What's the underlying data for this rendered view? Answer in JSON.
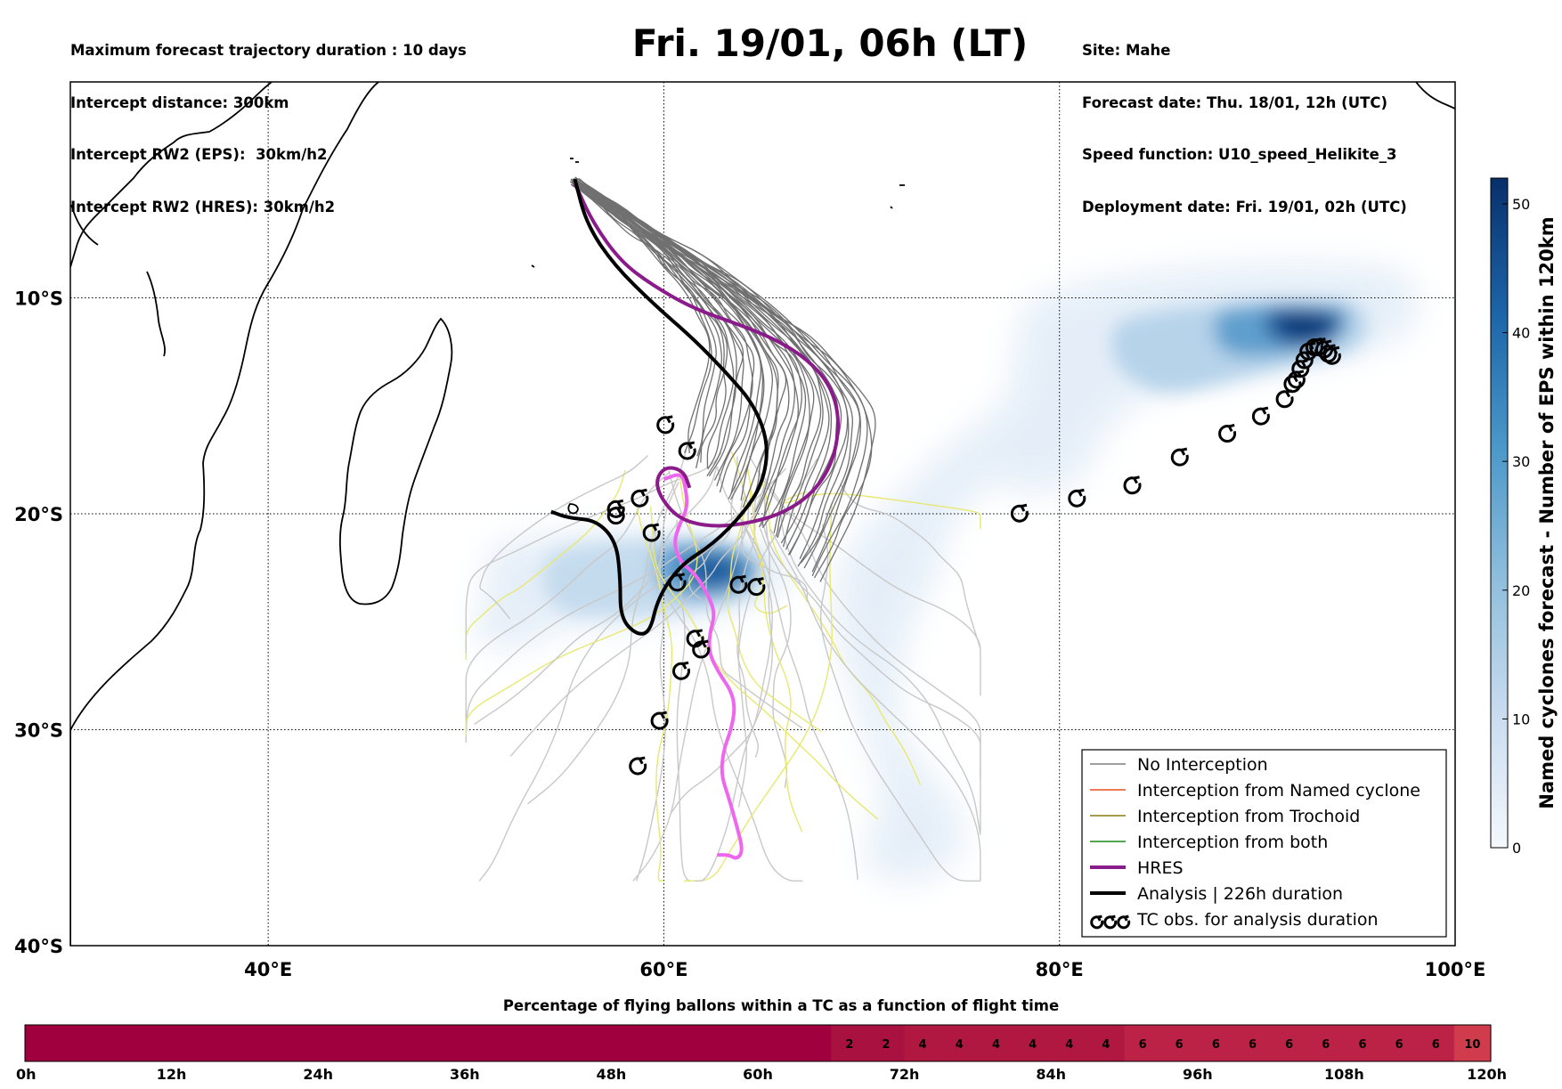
{
  "header_left": [
    "Maximum forecast trajectory duration : 10 days",
    "Intercept distance: 300km",
    "Intercept RW2 (EPS):  30km/h2",
    "Intercept RW2 (HRES): 30km/h2"
  ],
  "header_right": [
    "Site: Mahe",
    "Forecast date: Thu. 18/01, 12h (UTC)",
    "Speed function: U10_speed_Helikite_3",
    "Deployment date: Fri. 19/01, 02h (UTC)"
  ],
  "title": "Fri. 19/01, 06h (LT)",
  "map": {
    "lon_range": [
      30,
      100
    ],
    "lat_range": [
      -40,
      0
    ],
    "lon_ticks": [
      {
        "value": 40,
        "label": "40°E"
      },
      {
        "value": 60,
        "label": "60°E"
      },
      {
        "value": 80,
        "label": "80°E"
      },
      {
        "value": 100,
        "label": "100°E"
      }
    ],
    "lat_ticks": [
      {
        "value": -10,
        "label": "10°S"
      },
      {
        "value": -20,
        "label": "20°S"
      },
      {
        "value": -30,
        "label": "30°S"
      },
      {
        "value": -40,
        "label": "40°S"
      }
    ],
    "grid": true
  },
  "colorbar": {
    "label": "Named cyclones forecast - Number of EPS within 120km",
    "range": [
      0,
      52
    ],
    "ticks": [
      "0",
      "10",
      "20",
      "30",
      "40",
      "50"
    ],
    "tick_values": [
      0,
      10,
      20,
      30,
      40,
      50
    ]
  },
  "legend": {
    "placement": "lower-right",
    "items": [
      {
        "label": "No Interception",
        "color": "#808080",
        "style": "line-thin"
      },
      {
        "label": "Interception from Named cyclone",
        "color": "#e8521e",
        "style": "line-thin"
      },
      {
        "label": "Interception from Trochoid",
        "color": "#8a7a10",
        "style": "line-thin"
      },
      {
        "label": "Interception from both",
        "color": "#1a8a1a",
        "style": "line-thin"
      },
      {
        "label": "HRES",
        "color": "#8b1a8b",
        "style": "line-thick"
      },
      {
        "label": "Analysis | 226h duration",
        "color": "#000000",
        "style": "line-thick"
      },
      {
        "label": "TC obs. for analysis duration",
        "color": "#000000",
        "style": "cyclone-symbols"
      }
    ]
  },
  "tracks": {
    "hres_color": "#8b1a8b",
    "analysis_color": "#000000",
    "hres_obs_color": "#ee66ee",
    "eps_no_interception_color": "#707070",
    "eps_light_color": "#c8c8c8",
    "trochoid_light_color": "#e8e870",
    "hres": [
      [
        55.5,
        -4.7
      ],
      [
        56.4,
        -6.5
      ],
      [
        57.8,
        -8.3
      ],
      [
        59.4,
        -9.4
      ],
      [
        61.5,
        -10.5
      ],
      [
        63.7,
        -11.2
      ],
      [
        65.6,
        -11.9
      ],
      [
        67.2,
        -12.8
      ],
      [
        68.4,
        -14.0
      ],
      [
        68.9,
        -15.6
      ],
      [
        68.6,
        -17.5
      ],
      [
        67.6,
        -19.0
      ],
      [
        66.0,
        -20.0
      ],
      [
        64.0,
        -20.5
      ],
      [
        62.2,
        -20.6
      ],
      [
        60.7,
        -20.2
      ],
      [
        59.8,
        -19.2
      ],
      [
        59.6,
        -18.4
      ],
      [
        60.1,
        -17.8
      ],
      [
        61.0,
        -18.0
      ],
      [
        61.3,
        -18.8
      ]
    ],
    "analysis": [
      [
        55.5,
        -4.5
      ],
      [
        56.1,
        -6.6
      ],
      [
        57.5,
        -8.5
      ],
      [
        59.5,
        -10.3
      ],
      [
        61.5,
        -11.9
      ],
      [
        63.2,
        -13.5
      ],
      [
        64.6,
        -15.0
      ],
      [
        65.3,
        -16.8
      ],
      [
        65.0,
        -18.6
      ],
      [
        64.0,
        -20.0
      ],
      [
        62.5,
        -21.4
      ],
      [
        60.8,
        -22.4
      ],
      [
        59.7,
        -23.9
      ],
      [
        59.3,
        -25.5
      ],
      [
        58.6,
        -25.6
      ],
      [
        57.8,
        -24.8
      ],
      [
        57.8,
        -23.0
      ],
      [
        57.6,
        -21.3
      ],
      [
        56.6,
        -20.3
      ],
      [
        55.2,
        -20.2
      ],
      [
        54.3,
        -19.9
      ]
    ],
    "hres_obs": [
      [
        60.0,
        -18.4
      ],
      [
        60.9,
        -18.1
      ],
      [
        61.1,
        -18.8
      ],
      [
        61.2,
        -19.7
      ],
      [
        60.8,
        -20.5
      ],
      [
        60.5,
        -21.3
      ],
      [
        60.8,
        -22.2
      ],
      [
        61.6,
        -22.8
      ],
      [
        62.2,
        -23.7
      ],
      [
        62.6,
        -24.6
      ],
      [
        62.3,
        -25.6
      ],
      [
        62.3,
        -26.5
      ],
      [
        62.8,
        -27.4
      ],
      [
        63.4,
        -28.2
      ],
      [
        63.6,
        -29.0
      ],
      [
        63.4,
        -30.0
      ],
      [
        63.0,
        -31.0
      ],
      [
        62.9,
        -32.1
      ],
      [
        63.3,
        -33.2
      ],
      [
        63.7,
        -34.5
      ],
      [
        64.0,
        -35.6
      ],
      [
        63.7,
        -36.0
      ],
      [
        63.3,
        -35.8
      ],
      [
        62.7,
        -35.8
      ]
    ],
    "tc_obs_west": [
      [
        60.1,
        -15.9
      ],
      [
        61.2,
        -17.1
      ],
      [
        57.6,
        -19.8
      ],
      [
        57.6,
        -20.1
      ],
      [
        58.8,
        -19.3
      ],
      [
        59.4,
        -20.9
      ],
      [
        60.7,
        -23.2
      ],
      [
        63.8,
        -23.3
      ],
      [
        64.7,
        -23.4
      ],
      [
        61.6,
        -25.8
      ],
      [
        61.9,
        -26.3
      ],
      [
        60.9,
        -27.3
      ],
      [
        59.8,
        -29.6
      ],
      [
        58.7,
        -31.7
      ]
    ],
    "tc_obs_east": [
      [
        78.0,
        -20.0
      ],
      [
        80.9,
        -19.3
      ],
      [
        83.7,
        -18.7
      ],
      [
        86.1,
        -17.4
      ],
      [
        88.5,
        -16.3
      ],
      [
        90.2,
        -15.5
      ],
      [
        91.4,
        -14.7
      ],
      [
        91.8,
        -14.0
      ],
      [
        92.0,
        -13.8
      ],
      [
        92.2,
        -13.3
      ],
      [
        92.4,
        -12.9
      ],
      [
        92.6,
        -12.5
      ],
      [
        92.9,
        -12.3
      ],
      [
        93.1,
        -12.3
      ],
      [
        93.4,
        -12.4
      ],
      [
        93.6,
        -12.6
      ],
      [
        93.8,
        -12.7
      ]
    ]
  },
  "flight_bar": {
    "title": "Percentage of flying ballons within a TC as a function of flight time",
    "time_ticks": [
      "0h",
      "12h",
      "24h",
      "36h",
      "48h",
      "60h",
      "72h",
      "84h",
      "96h",
      "108h",
      "120h"
    ],
    "values": [
      0,
      0,
      0,
      0,
      0,
      0,
      0,
      0,
      0,
      0,
      0,
      0,
      0,
      0,
      0,
      0,
      0,
      0,
      0,
      0,
      0,
      0,
      2,
      2,
      4,
      4,
      4,
      4,
      4,
      4,
      6,
      6,
      6,
      6,
      6,
      6,
      6,
      6,
      6,
      10
    ],
    "value_labels": [
      "",
      "",
      "",
      "",
      "",
      "",
      "",
      "",
      "",
      "",
      "",
      "",
      "",
      "",
      "",
      "",
      "",
      "",
      "",
      "",
      "",
      "",
      "2",
      "2",
      "4",
      "4",
      "4",
      "4",
      "4",
      "4",
      "6",
      "6",
      "6",
      "6",
      "6",
      "6",
      "6",
      "6",
      "6",
      "10"
    ],
    "colors": {
      "0": "#a1003e",
      "2": "#a91240",
      "4": "#b01841",
      "6": "#bb2245",
      "10": "#d03c4c"
    }
  }
}
